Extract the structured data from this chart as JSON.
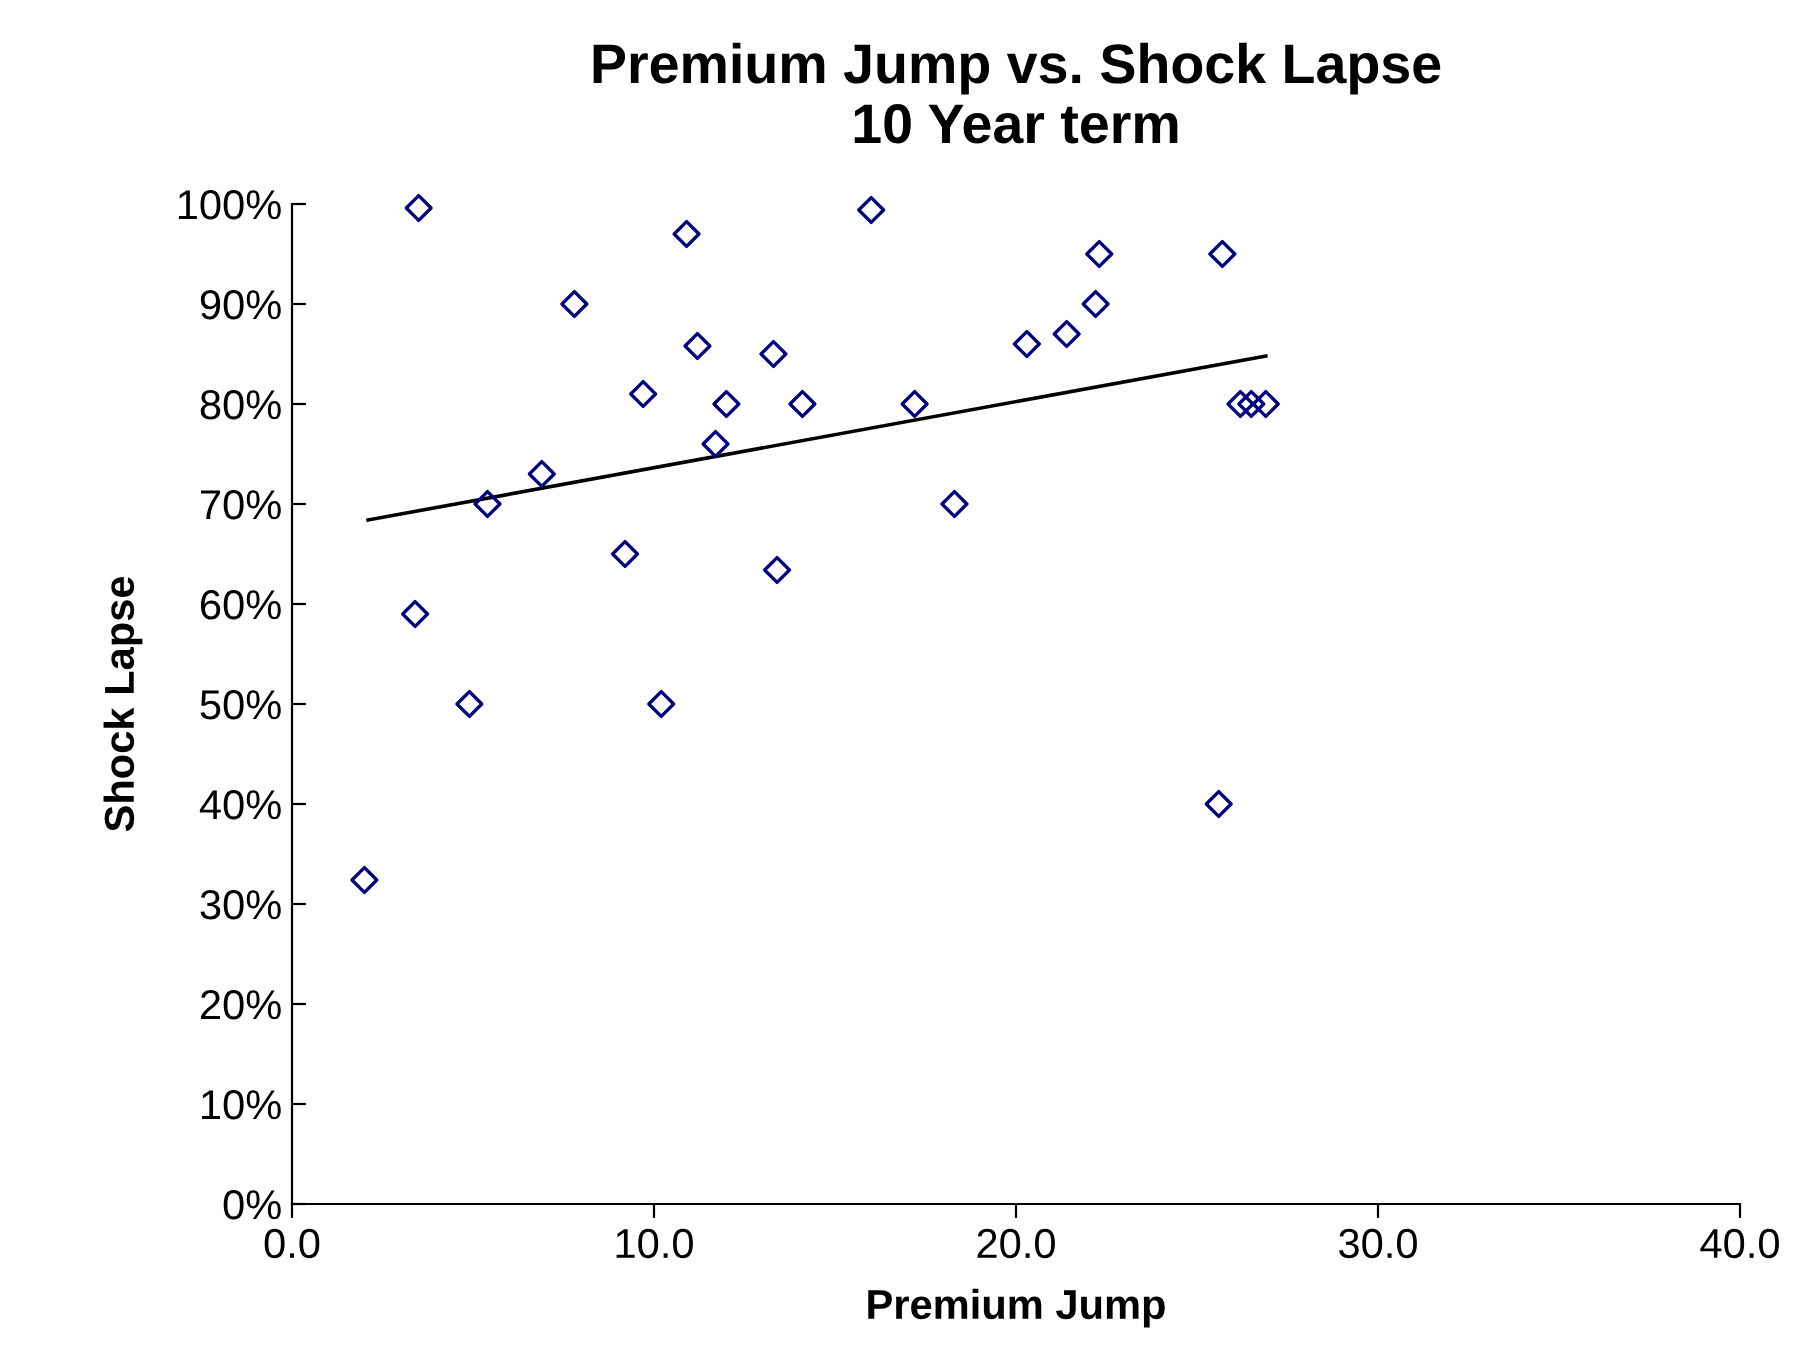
{
  "chart_data": {
    "type": "scatter",
    "title": "Premium Jump vs. Shock Lapse\n10 Year term",
    "xlabel": "Premium Jump",
    "ylabel": "Shock Lapse",
    "marker": "diamond",
    "grid": false,
    "legend": false,
    "xlim": [
      0,
      40
    ],
    "xticks": [
      {
        "value": 0,
        "label": "0.0"
      },
      {
        "value": 10,
        "label": "10.0"
      },
      {
        "value": 20,
        "label": "20.0"
      },
      {
        "value": 30,
        "label": "30.0"
      },
      {
        "value": 40,
        "label": "40.0"
      }
    ],
    "ylim": [
      0,
      100
    ],
    "yticks": [
      {
        "value": 0,
        "label": "0%"
      },
      {
        "value": 10,
        "label": "10%"
      },
      {
        "value": 20,
        "label": "20%"
      },
      {
        "value": 30,
        "label": "30%"
      },
      {
        "value": 40,
        "label": "40%"
      },
      {
        "value": 50,
        "label": "50%"
      },
      {
        "value": 60,
        "label": "60%"
      },
      {
        "value": 70,
        "label": "70%"
      },
      {
        "value": 80,
        "label": "80%"
      },
      {
        "value": 90,
        "label": "90%"
      },
      {
        "value": 100,
        "label": "100%"
      }
    ],
    "series": [
      {
        "color": "#000080",
        "x": [
          2.0,
          3.5,
          3.4,
          4.9,
          5.4,
          6.9,
          7.8,
          9.2,
          9.7,
          10.2,
          10.9,
          11.2,
          11.7,
          12.0,
          13.3,
          13.4,
          14.1,
          16.0,
          17.2,
          18.3,
          20.3,
          21.4,
          22.2,
          22.3,
          25.6,
          25.7,
          26.2,
          26.5,
          26.9
        ],
        "values": [
          32.4,
          99.6,
          59,
          50,
          70,
          73,
          90,
          65,
          81,
          50,
          97,
          85.8,
          76,
          80,
          85,
          63.4,
          80,
          99.4,
          80,
          70,
          86,
          87,
          90,
          95,
          40,
          95,
          80,
          80,
          80
        ]
      },
      {
        "type": "line",
        "color": "#000000",
        "marker": "none",
        "x": [
          2.1,
          26.9
        ],
        "values": [
          68.4,
          84.8
        ]
      }
    ]
  }
}
